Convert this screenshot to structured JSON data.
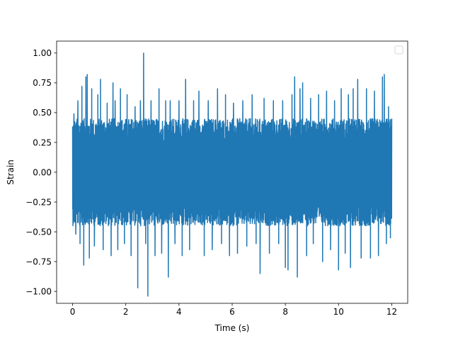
{
  "chart_data": {
    "type": "line",
    "title": "",
    "xlabel": "Time (s)",
    "ylabel": "Strain",
    "xlim": [
      -0.6,
      12.6
    ],
    "ylim": [
      -1.1,
      1.1
    ],
    "x_ticks": [
      0,
      2,
      4,
      6,
      8,
      10,
      12
    ],
    "x_tick_labels": [
      "0",
      "2",
      "4",
      "6",
      "8",
      "10",
      "12"
    ],
    "y_ticks": [
      -1.0,
      -0.75,
      -0.5,
      -0.25,
      0.0,
      0.25,
      0.5,
      0.75,
      1.0
    ],
    "y_tick_labels": [
      "−1.00",
      "−0.75",
      "−0.50",
      "−0.25",
      "0.00",
      "0.25",
      "0.50",
      "0.75",
      "1.00"
    ],
    "grid": false,
    "legend": {
      "placement": "top-right",
      "entries": []
    },
    "series": [
      {
        "color": "#1f77b4",
        "x_range": [
          0,
          12
        ],
        "band_upper": 0.45,
        "band_lower": -0.45,
        "peaks": [
          {
            "x": 0.05,
            "y": 0.49
          },
          {
            "x": 0.12,
            "y": -0.52
          },
          {
            "x": 0.2,
            "y": 0.6
          },
          {
            "x": 0.28,
            "y": -0.6
          },
          {
            "x": 0.35,
            "y": 0.72
          },
          {
            "x": 0.42,
            "y": -0.78
          },
          {
            "x": 0.5,
            "y": 0.8
          },
          {
            "x": 0.55,
            "y": 0.82
          },
          {
            "x": 0.63,
            "y": -0.72
          },
          {
            "x": 0.72,
            "y": 0.7
          },
          {
            "x": 0.82,
            "y": -0.62
          },
          {
            "x": 0.95,
            "y": 0.65
          },
          {
            "x": 1.05,
            "y": 0.78
          },
          {
            "x": 1.15,
            "y": -0.65
          },
          {
            "x": 1.3,
            "y": 0.58
          },
          {
            "x": 1.45,
            "y": -0.7
          },
          {
            "x": 1.52,
            "y": 0.75
          },
          {
            "x": 1.6,
            "y": 0.6
          },
          {
            "x": 1.7,
            "y": -0.65
          },
          {
            "x": 1.8,
            "y": 0.7
          },
          {
            "x": 1.95,
            "y": -0.6
          },
          {
            "x": 2.05,
            "y": 0.65
          },
          {
            "x": 2.2,
            "y": -0.7
          },
          {
            "x": 2.35,
            "y": 0.55
          },
          {
            "x": 2.45,
            "y": -0.97
          },
          {
            "x": 2.55,
            "y": 0.6
          },
          {
            "x": 2.67,
            "y": 1.0
          },
          {
            "x": 2.75,
            "y": -0.6
          },
          {
            "x": 2.83,
            "y": -1.04
          },
          {
            "x": 2.95,
            "y": 0.6
          },
          {
            "x": 3.1,
            "y": -0.7
          },
          {
            "x": 3.25,
            "y": 0.7
          },
          {
            "x": 3.35,
            "y": -0.68
          },
          {
            "x": 3.5,
            "y": 0.6
          },
          {
            "x": 3.6,
            "y": -0.88
          },
          {
            "x": 3.67,
            "y": 0.6
          },
          {
            "x": 3.85,
            "y": -0.6
          },
          {
            "x": 4.0,
            "y": 0.6
          },
          {
            "x": 4.12,
            "y": -0.7
          },
          {
            "x": 4.25,
            "y": 0.78
          },
          {
            "x": 4.4,
            "y": -0.65
          },
          {
            "x": 4.55,
            "y": 0.6
          },
          {
            "x": 4.75,
            "y": 0.68
          },
          {
            "x": 4.95,
            "y": -0.7
          },
          {
            "x": 5.1,
            "y": 0.6
          },
          {
            "x": 5.25,
            "y": -0.65
          },
          {
            "x": 5.45,
            "y": 0.7
          },
          {
            "x": 5.6,
            "y": -0.6
          },
          {
            "x": 5.75,
            "y": 0.65
          },
          {
            "x": 5.9,
            "y": -0.7
          },
          {
            "x": 6.05,
            "y": 0.58
          },
          {
            "x": 6.2,
            "y": -0.68
          },
          {
            "x": 6.4,
            "y": 0.6
          },
          {
            "x": 6.55,
            "y": -0.62
          },
          {
            "x": 6.75,
            "y": 0.65
          },
          {
            "x": 6.9,
            "y": -0.6
          },
          {
            "x": 7.05,
            "y": -0.85
          },
          {
            "x": 7.2,
            "y": 0.62
          },
          {
            "x": 7.4,
            "y": -0.68
          },
          {
            "x": 7.55,
            "y": 0.6
          },
          {
            "x": 7.75,
            "y": -0.6
          },
          {
            "x": 7.9,
            "y": 0.6
          },
          {
            "x": 8.0,
            "y": -0.8
          },
          {
            "x": 8.1,
            "y": -0.82
          },
          {
            "x": 8.25,
            "y": 0.65
          },
          {
            "x": 8.35,
            "y": 0.8
          },
          {
            "x": 8.45,
            "y": -0.88
          },
          {
            "x": 8.55,
            "y": 0.7
          },
          {
            "x": 8.65,
            "y": 0.75
          },
          {
            "x": 8.8,
            "y": -0.7
          },
          {
            "x": 8.95,
            "y": 0.62
          },
          {
            "x": 9.05,
            "y": -0.6
          },
          {
            "x": 9.25,
            "y": 0.65
          },
          {
            "x": 9.4,
            "y": -0.75
          },
          {
            "x": 9.55,
            "y": 0.68
          },
          {
            "x": 9.7,
            "y": -0.65
          },
          {
            "x": 9.85,
            "y": 0.6
          },
          {
            "x": 10.0,
            "y": -0.82
          },
          {
            "x": 10.1,
            "y": 0.7
          },
          {
            "x": 10.25,
            "y": -0.68
          },
          {
            "x": 10.37,
            "y": 0.65
          },
          {
            "x": 10.45,
            "y": -0.8
          },
          {
            "x": 10.55,
            "y": 0.7
          },
          {
            "x": 10.72,
            "y": 0.78
          },
          {
            "x": 10.85,
            "y": -0.72
          },
          {
            "x": 11.05,
            "y": 0.7
          },
          {
            "x": 11.2,
            "y": -0.72
          },
          {
            "x": 11.35,
            "y": 0.68
          },
          {
            "x": 11.5,
            "y": -0.7
          },
          {
            "x": 11.65,
            "y": 0.8
          },
          {
            "x": 11.72,
            "y": 0.82
          },
          {
            "x": 11.8,
            "y": -0.6
          },
          {
            "x": 11.88,
            "y": 0.55
          },
          {
            "x": 11.95,
            "y": -0.55
          },
          {
            "x": 12.0,
            "y": 0.45
          }
        ]
      }
    ]
  }
}
